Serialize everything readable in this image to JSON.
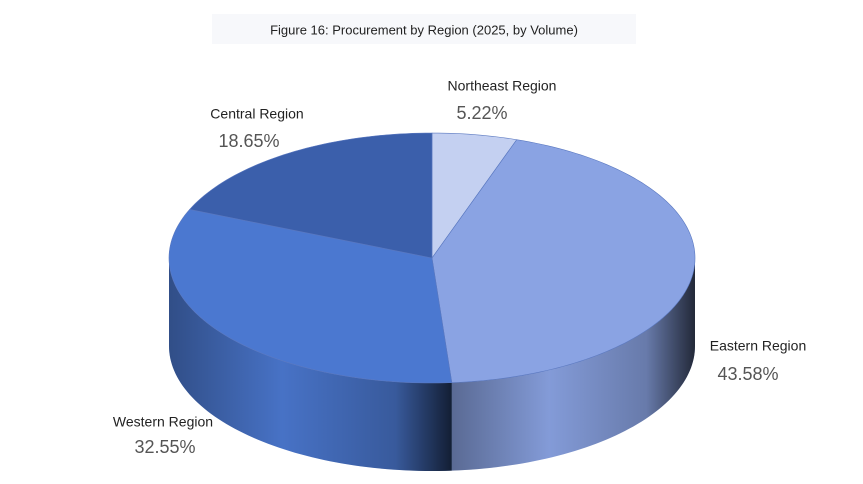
{
  "chart_data": {
    "type": "pie",
    "title": "Figure 16: Procurement by Region (2025, by Volume)",
    "categories": [
      "Northeast Region",
      "Eastern Region",
      "Western Region",
      "Central Region"
    ],
    "values": [
      5.22,
      43.58,
      32.55,
      18.65
    ],
    "value_labels": [
      "5.22%",
      "43.58%",
      "32.55%",
      "18.65%"
    ],
    "colors": [
      "#c4d0f1",
      "#8aa3e3",
      "#4b78d0",
      "#3b5fab"
    ]
  }
}
